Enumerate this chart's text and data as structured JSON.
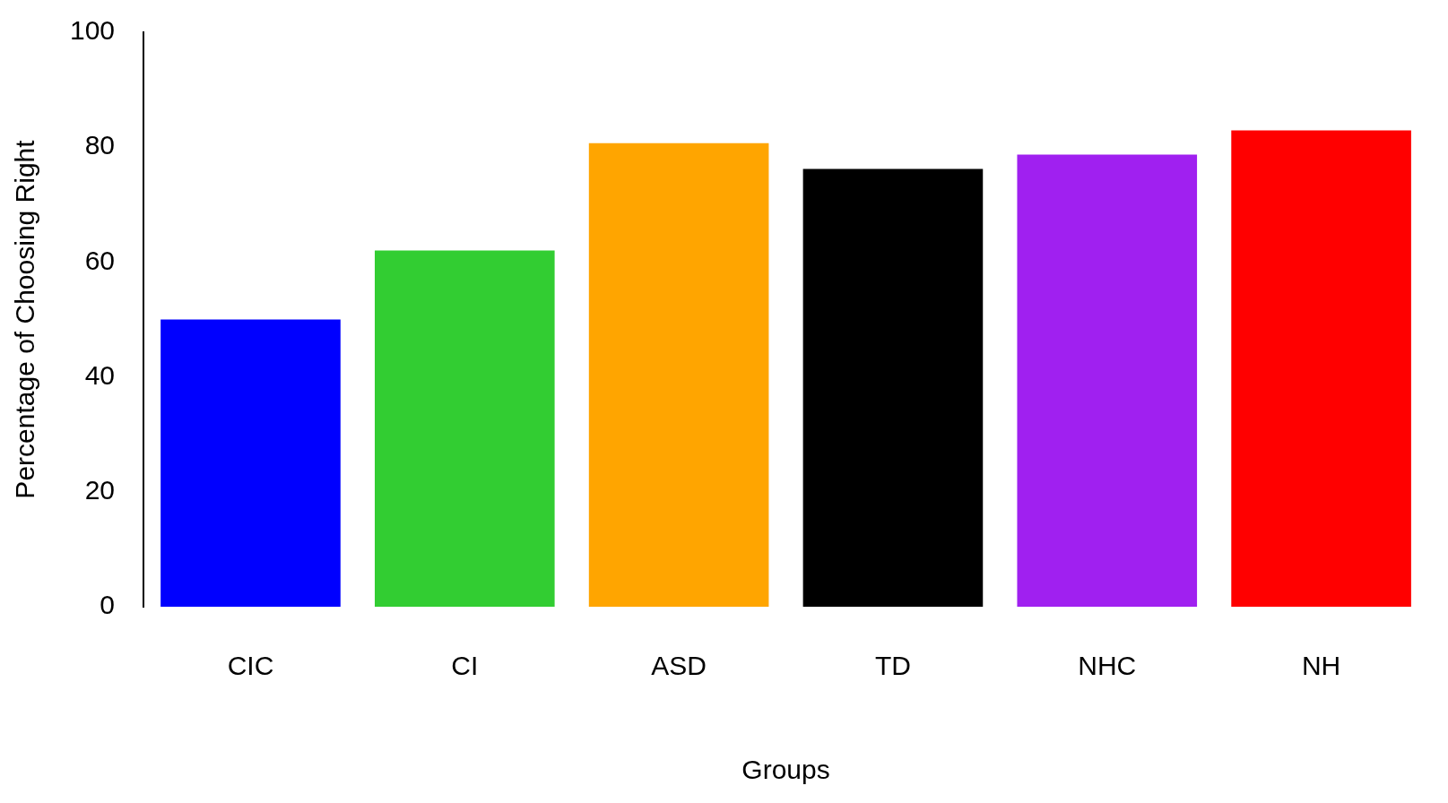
{
  "chart_data": {
    "type": "bar",
    "xlabel": "Groups",
    "ylabel": "Percentage of Choosing Right",
    "categories": [
      "CIC",
      "CI",
      "ASD",
      "TD",
      "NHC",
      "NH"
    ],
    "values": [
      50,
      62,
      80.7,
      76.2,
      78.7,
      82.9
    ],
    "colors": [
      "#0000ff",
      "#32cd32",
      "#ffa500",
      "#000000",
      "#a020f0",
      "#ff0000"
    ],
    "ylim": [
      0,
      100
    ],
    "yticks": [
      0,
      20,
      40,
      60,
      80,
      100
    ],
    "grid": false,
    "legend": false
  }
}
